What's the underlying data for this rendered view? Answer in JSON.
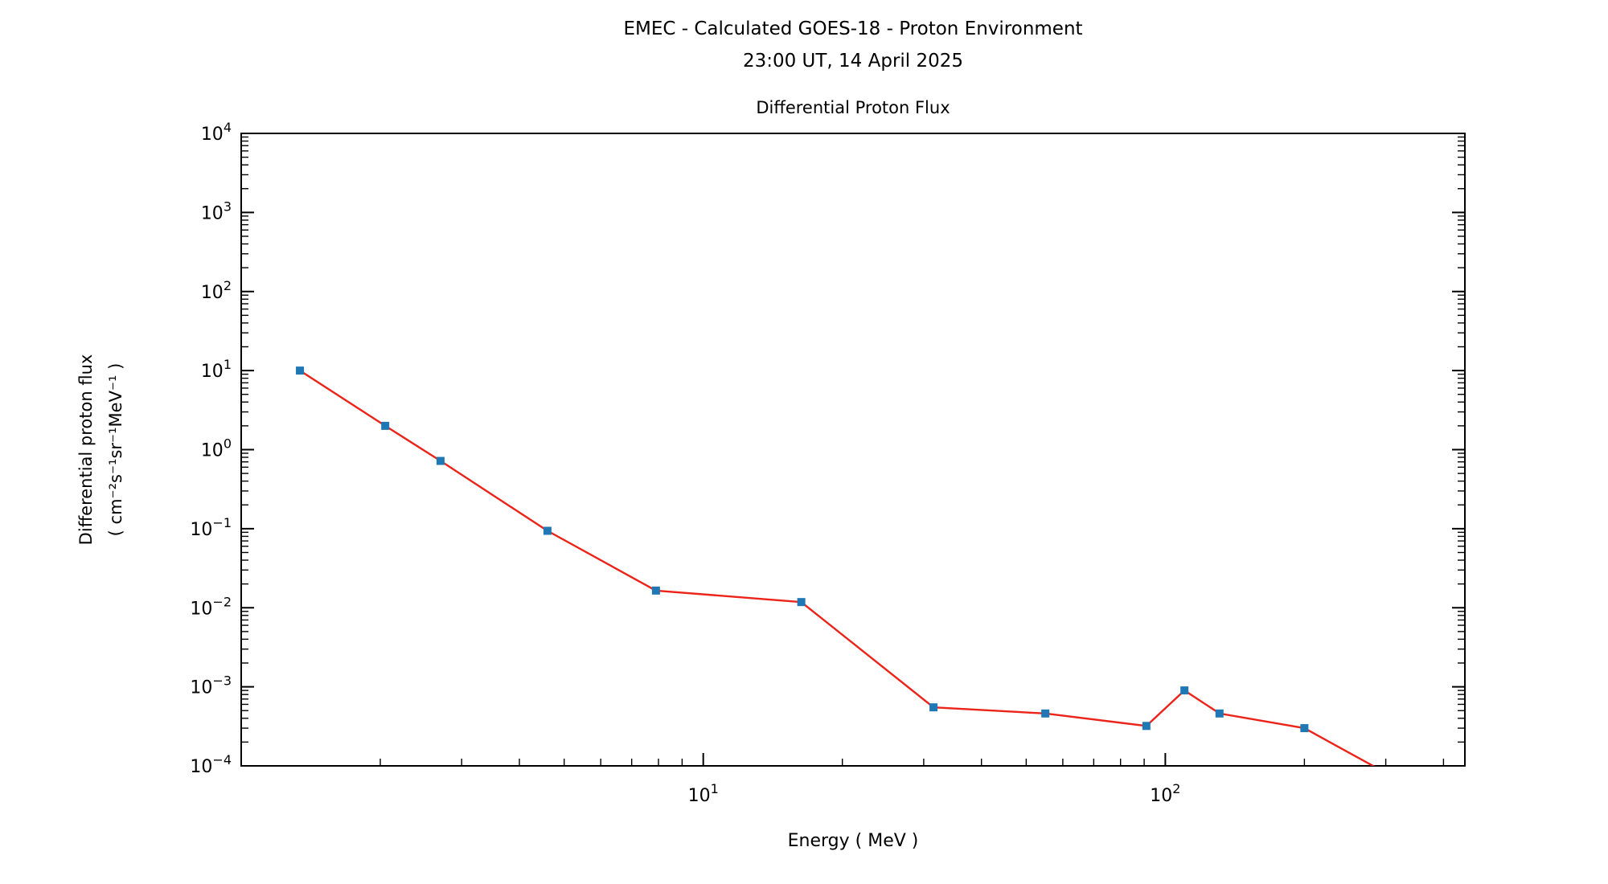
{
  "header": {
    "title_line1": "EMEC - Calculated GOES-18 - Proton Environment",
    "title_line2": "23:00 UT, 14 April 2025"
  },
  "chart_data": {
    "type": "line",
    "title": "Differential Proton Flux",
    "xlabel": "Energy ( MeV )",
    "ylabel_line1": "Differential proton flux",
    "ylabel_line2": "( cm⁻²s⁻¹sr⁻¹MeV⁻¹ )",
    "x_scale": "log",
    "y_scale": "log",
    "xlim": [
      1,
      445
    ],
    "ylim": [
      0.0001,
      10000.0
    ],
    "x_major_ticks": [
      10,
      100
    ],
    "y_major_tick_exponents": [
      4,
      3,
      2,
      1,
      0,
      -1,
      -2,
      -3,
      -4
    ],
    "grid": false,
    "legend": "none",
    "line_color": "#ec2318",
    "marker_color": "#1f77b4",
    "axis_color": "#000000",
    "series": [
      {
        "name": "Differential proton flux",
        "x": [
          1.34,
          2.05,
          2.7,
          4.6,
          7.9,
          16.3,
          31.5,
          55,
          91,
          110,
          131,
          200,
          330
        ],
        "y": [
          10,
          2,
          0.72,
          0.094,
          0.0165,
          0.0118,
          0.00055,
          0.00046,
          0.00032,
          0.0009,
          0.00046,
          0.0003,
          6e-05
        ],
        "marker": "square",
        "note": "last point falls below the y-axis lower limit; line exits plot bottom"
      }
    ]
  }
}
